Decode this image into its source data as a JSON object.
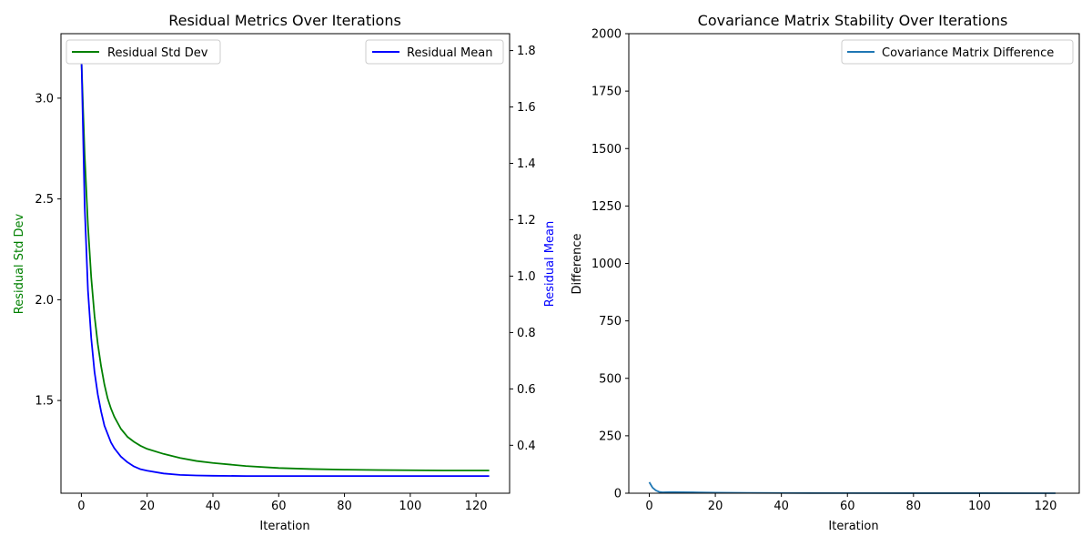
{
  "chart_data": [
    {
      "type": "line",
      "title": "Residual Metrics Over Iterations",
      "xlabel": "Iteration",
      "ylabel": "Residual Std Dev",
      "ylabel_right": "Residual Mean",
      "ylabel_color": "#008000",
      "ylabel_right_color": "#0000ff",
      "xlim": [
        -6.2,
        130.2
      ],
      "ylim": [
        1.04,
        3.32
      ],
      "ylim_right": [
        0.23,
        1.86
      ],
      "xticks": [
        0,
        20,
        40,
        60,
        80,
        100,
        120
      ],
      "yticks": [
        1.5,
        2.0,
        2.5,
        3.0
      ],
      "yticks_right": [
        0.4,
        0.6,
        0.8,
        1.0,
        1.2,
        1.4,
        1.6,
        1.8
      ],
      "x": [
        0,
        1,
        2,
        3,
        4,
        5,
        6,
        7,
        8,
        9,
        10,
        12,
        14,
        16,
        18,
        20,
        25,
        30,
        35,
        40,
        50,
        60,
        70,
        80,
        90,
        100,
        110,
        124
      ],
      "series": [
        {
          "name": "Residual Std Dev",
          "axis": "left",
          "color": "#008000",
          "legend": "top-left",
          "values": [
            3.2,
            2.72,
            2.37,
            2.11,
            1.92,
            1.78,
            1.67,
            1.58,
            1.51,
            1.46,
            1.42,
            1.36,
            1.32,
            1.295,
            1.275,
            1.26,
            1.235,
            1.215,
            1.2,
            1.19,
            1.175,
            1.165,
            1.16,
            1.157,
            1.155,
            1.154,
            1.153,
            1.153
          ]
        },
        {
          "name": "Residual Mean",
          "axis": "right",
          "color": "#0000ff",
          "legend": "top-right",
          "values": [
            1.79,
            1.25,
            0.95,
            0.78,
            0.66,
            0.58,
            0.52,
            0.47,
            0.44,
            0.41,
            0.39,
            0.36,
            0.34,
            0.325,
            0.315,
            0.31,
            0.3,
            0.295,
            0.293,
            0.292,
            0.291,
            0.291,
            0.291,
            0.291,
            0.291,
            0.291,
            0.291,
            0.291
          ]
        }
      ]
    },
    {
      "type": "line",
      "title": "Covariance Matrix Stability Over Iterations",
      "xlabel": "Iteration",
      "ylabel": "Difference",
      "xlim": [
        -6.2,
        130.2
      ],
      "ylim": [
        0,
        2000
      ],
      "xticks": [
        0,
        20,
        40,
        60,
        80,
        100,
        120
      ],
      "yticks": [
        0,
        250,
        500,
        750,
        1000,
        1250,
        1500,
        1750,
        2000
      ],
      "x": [
        0,
        1,
        2,
        3,
        4,
        5,
        6,
        8,
        10,
        15,
        20,
        30,
        40,
        60,
        80,
        100,
        123
      ],
      "series": [
        {
          "name": "Covariance Matrix Difference",
          "axis": "left",
          "color": "#1f77b4",
          "legend": "top-right",
          "values": [
            48,
            24,
            12,
            6,
            4,
            4.5,
            5,
            5,
            4.5,
            3.5,
            2.5,
            1.5,
            1,
            0.5,
            0.3,
            0.2,
            0.1
          ]
        }
      ]
    }
  ]
}
